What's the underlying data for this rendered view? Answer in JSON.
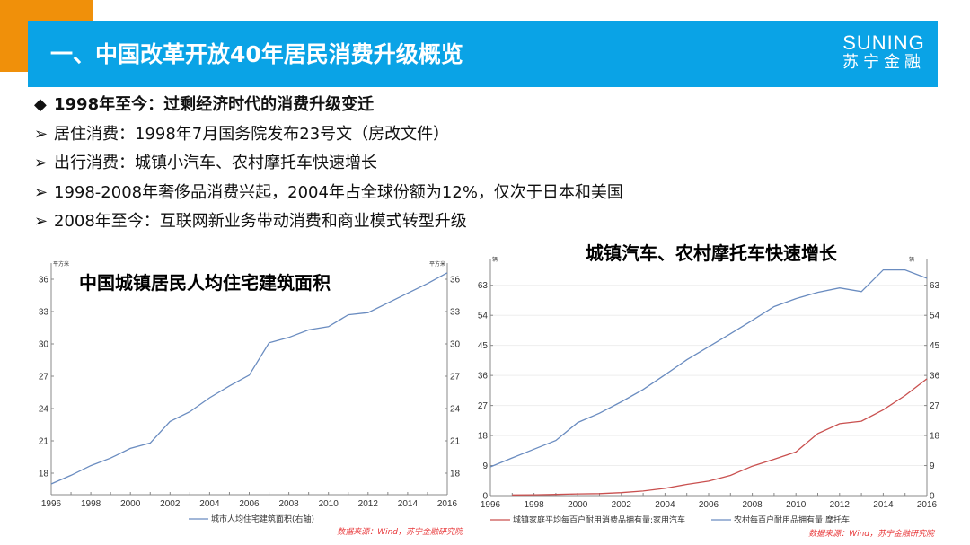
{
  "header": {
    "title": "一、中国改革开放40年居民消费升级概览",
    "logo_en": "SUNING",
    "logo_cn": "苏宁金融",
    "colors": {
      "banner": "#0aa3e6",
      "accent": "#f0900a"
    }
  },
  "bullets": [
    {
      "marker": "◆",
      "text": "1998年至今：过剩经济时代的消费升级变迁"
    },
    {
      "marker": "➢",
      "text": "居住消费：1998年7月国务院发布23号文（房改文件）"
    },
    {
      "marker": "➢",
      "text": "出行消费：城镇小汽车、农村摩托车快速增长"
    },
    {
      "marker": "➢",
      "text": "1998-2008年奢侈品消费兴起，2004年占全球份额为12%，仅次于日本和美国"
    },
    {
      "marker": "➢",
      "text": "2008年至今：互联网新业务带动消费和商业模式转型升级"
    }
  ],
  "chart_data": [
    {
      "type": "line",
      "title": "中国城镇居民人均住宅建筑面积",
      "unit_left": "平方米",
      "unit_right": "平方米",
      "x": [
        1996,
        1997,
        1998,
        1999,
        2000,
        2001,
        2002,
        2003,
        2004,
        2005,
        2006,
        2007,
        2008,
        2009,
        2010,
        2011,
        2012,
        2013,
        2014,
        2015,
        2016
      ],
      "xticks": [
        "1996",
        "1998",
        "2000",
        "2002",
        "2004",
        "2006",
        "2008",
        "2010",
        "2012",
        "2014",
        "2016"
      ],
      "yticks": [
        "18",
        "21",
        "24",
        "27",
        "30",
        "33",
        "36"
      ],
      "ylim": [
        16,
        37.5
      ],
      "grid": false,
      "legend_position": "bottom",
      "series": [
        {
          "name": "城市人均住宅建筑面积(右轴)",
          "color": "#6a8cc0",
          "values": [
            17.0,
            17.8,
            18.7,
            19.4,
            20.3,
            20.8,
            22.8,
            23.7,
            25.0,
            26.1,
            27.1,
            30.1,
            30.6,
            31.3,
            31.6,
            32.7,
            32.9,
            33.8,
            34.7,
            35.6,
            36.6
          ]
        }
      ],
      "source": "数据来源：Wind，苏宁金融研究院"
    },
    {
      "type": "line",
      "title": "城镇汽车、农村摩托车快速增长",
      "unit_left": "辆",
      "unit_right": "辆",
      "x": [
        1996,
        1997,
        1998,
        1999,
        2000,
        2001,
        2002,
        2003,
        2004,
        2005,
        2006,
        2007,
        2008,
        2009,
        2010,
        2011,
        2012,
        2013,
        2014,
        2015,
        2016
      ],
      "xticks": [
        "1996",
        "1998",
        "2000",
        "2002",
        "2004",
        "2006",
        "2008",
        "2010",
        "2012",
        "2014",
        "2016"
      ],
      "yticks": [
        "0",
        "9",
        "18",
        "27",
        "36",
        "45",
        "54",
        "63"
      ],
      "ylim": [
        0,
        71
      ],
      "grid": true,
      "legend_position": "bottom",
      "series": [
        {
          "name": "城镇家庭平均每百户耐用消费品拥有量:家用汽车",
          "color": "#c9504f",
          "values": [
            null,
            0.2,
            0.25,
            0.34,
            0.5,
            0.6,
            0.88,
            1.36,
            2.18,
            3.37,
            4.32,
            6.06,
            8.83,
            10.89,
            13.07,
            18.58,
            21.54,
            22.3,
            25.7,
            30.0,
            35.0
          ]
        },
        {
          "name": "农村每百户耐用品拥有量:摩托车",
          "color": "#6a8cc0",
          "values": [
            8.6,
            11.3,
            13.9,
            16.5,
            21.9,
            24.7,
            28.1,
            31.8,
            36.2,
            40.7,
            44.6,
            48.5,
            52.5,
            56.6,
            59.0,
            60.9,
            62.2,
            61.1,
            67.6,
            67.6,
            65.1
          ]
        }
      ],
      "source": "数据来源：Wind，苏宁金融研究院"
    }
  ]
}
